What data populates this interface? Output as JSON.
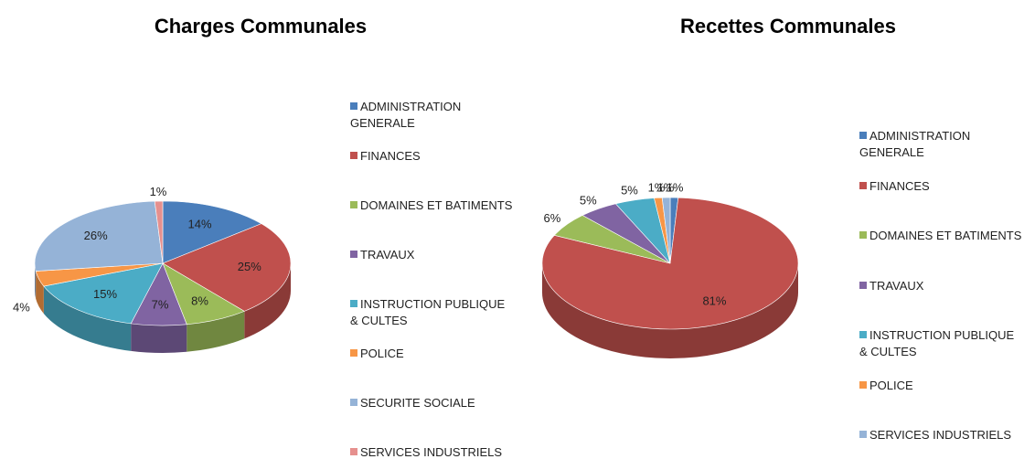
{
  "chart_data": [
    {
      "type": "pie3d",
      "title": "Charges Communales",
      "categories": [
        "ADMINISTRATION GENERALE",
        "FINANCES",
        "DOMAINES ET BATIMENTS",
        "TRAVAUX",
        "INSTRUCTION PUBLIQUE & CULTES",
        "POLICE",
        "SECURITE SOCIALE",
        "SERVICES INDUSTRIELS"
      ],
      "values": [
        14,
        25,
        8,
        7,
        15,
        4,
        26,
        1
      ],
      "value_labels": [
        "14%",
        "25%",
        "8%",
        "7%",
        "15%",
        "4%",
        "26%",
        "1%"
      ],
      "colors": [
        "#4a7ebb",
        "#c0504d",
        "#9bbb59",
        "#8064a2",
        "#4bacc6",
        "#f79646",
        "#95b3d7",
        "#e6908e"
      ]
    },
    {
      "type": "pie3d",
      "title": "Recettes Communales",
      "categories": [
        "ADMINISTRATION GENERALE",
        "FINANCES",
        "DOMAINES ET BATIMENTS",
        "TRAVAUX",
        "INSTRUCTION PUBLIQUE & CULTES",
        "POLICE",
        "SERVICES INDUSTRIELS"
      ],
      "values": [
        1,
        81,
        6,
        5,
        5,
        1,
        1
      ],
      "value_labels": [
        "1%",
        "81%",
        "6%",
        "5%",
        "5%",
        "1%",
        "1%"
      ],
      "colors": [
        "#4a7ebb",
        "#c0504d",
        "#9bbb59",
        "#8064a2",
        "#4bacc6",
        "#f79646",
        "#95b3d7"
      ]
    }
  ]
}
